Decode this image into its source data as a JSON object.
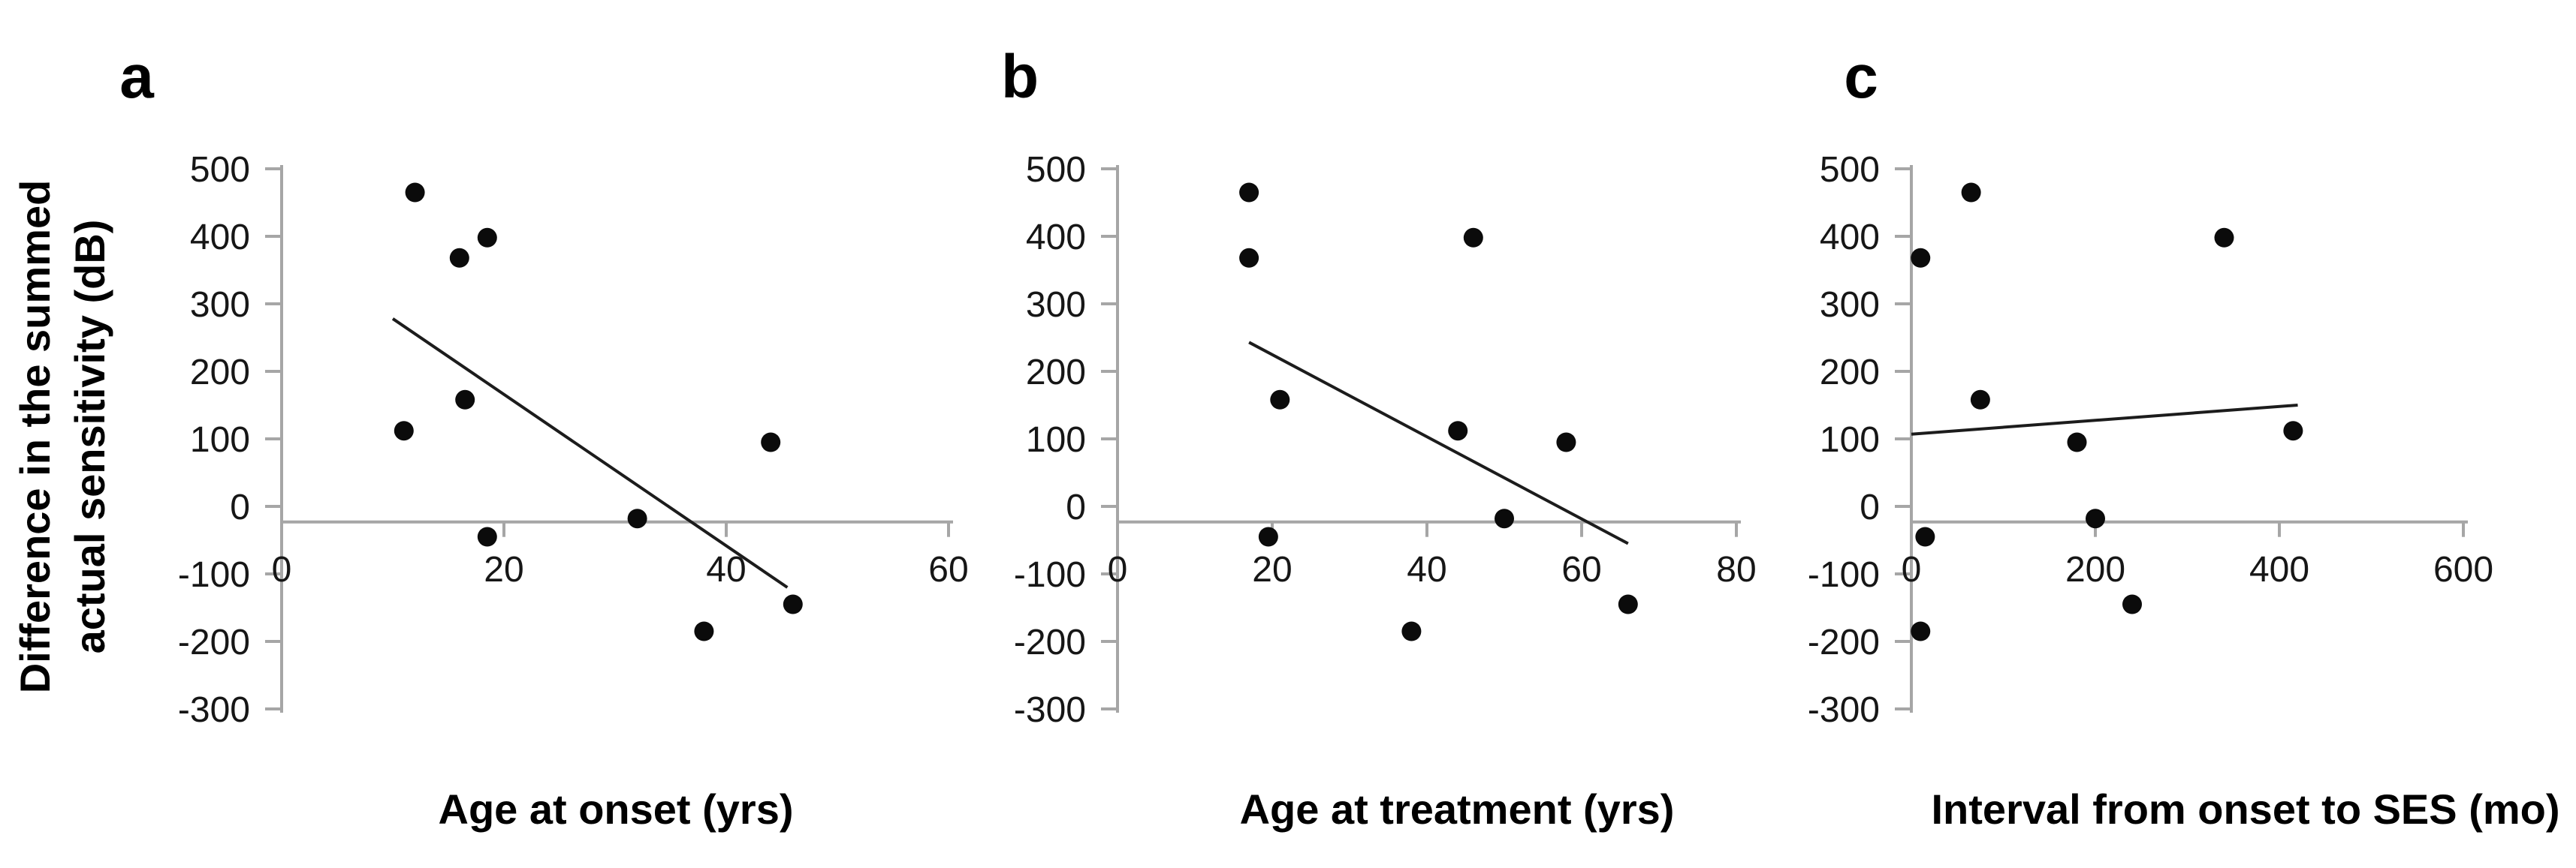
{
  "figure": {
    "y_axis_label": [
      "Difference in the summed",
      "actual sensitivity (dB)"
    ]
  },
  "colors": {
    "axis_line": "#a6a6a6",
    "ink": "#0b0b0b"
  },
  "chart_data": [
    {
      "type": "scatter",
      "panel_label": "a",
      "xlabel": "Age at onset (yrs)",
      "ylabel": "Difference in the summed actual sensitivity (dB)",
      "xlim": [
        0,
        60
      ],
      "xticks": [
        0,
        20,
        40,
        60
      ],
      "ylim": [
        -300,
        500
      ],
      "yticks": [
        500,
        400,
        300,
        200,
        100,
        0,
        -100,
        -200,
        -300
      ],
      "x_axis_position_y": -23,
      "grid": false,
      "legend": "none",
      "points": [
        [
          12,
          465
        ],
        [
          18.5,
          398
        ],
        [
          16,
          368
        ],
        [
          16.5,
          158
        ],
        [
          11,
          112
        ],
        [
          44,
          95
        ],
        [
          32,
          -18
        ],
        [
          18.5,
          -45
        ],
        [
          46,
          -145
        ],
        [
          38,
          -185
        ]
      ],
      "trendline": {
        "x1": 10,
        "y1": 278,
        "x2": 45.5,
        "y2": -120
      }
    },
    {
      "type": "scatter",
      "panel_label": "b",
      "xlabel": "Age at treatment (yrs)",
      "ylabel": "Difference in the summed actual sensitivity (dB)",
      "xlim": [
        0,
        80
      ],
      "xticks": [
        0,
        20,
        40,
        60,
        80
      ],
      "ylim": [
        -300,
        500
      ],
      "yticks": [
        500,
        400,
        300,
        200,
        100,
        0,
        -100,
        -200,
        -300
      ],
      "x_axis_position_y": -23,
      "grid": false,
      "legend": "none",
      "points": [
        [
          17,
          465
        ],
        [
          46,
          398
        ],
        [
          17,
          368
        ],
        [
          21,
          158
        ],
        [
          44,
          112
        ],
        [
          58,
          95
        ],
        [
          50,
          -18
        ],
        [
          19.5,
          -45
        ],
        [
          66,
          -145
        ],
        [
          38,
          -185
        ]
      ],
      "trendline": {
        "x1": 17,
        "y1": 243,
        "x2": 66,
        "y2": -55
      }
    },
    {
      "type": "scatter",
      "panel_label": "c",
      "xlabel": "Interval from onset to SES (mo)",
      "ylabel": "Difference in the summed actual sensitivity (dB)",
      "xlim": [
        0,
        600
      ],
      "xticks": [
        0,
        200,
        400,
        600
      ],
      "ylim": [
        -300,
        500
      ],
      "yticks": [
        500,
        400,
        300,
        200,
        100,
        0,
        -100,
        -200,
        -300
      ],
      "x_axis_position_y": -23,
      "grid": false,
      "legend": "none",
      "points": [
        [
          65,
          465
        ],
        [
          340,
          398
        ],
        [
          10,
          368
        ],
        [
          75,
          158
        ],
        [
          415,
          112
        ],
        [
          180,
          95
        ],
        [
          200,
          -18
        ],
        [
          15,
          -45
        ],
        [
          240,
          -145
        ],
        [
          10,
          -185
        ]
      ],
      "trendline": {
        "x1": 0,
        "y1": 107,
        "x2": 420,
        "y2": 150
      }
    }
  ]
}
